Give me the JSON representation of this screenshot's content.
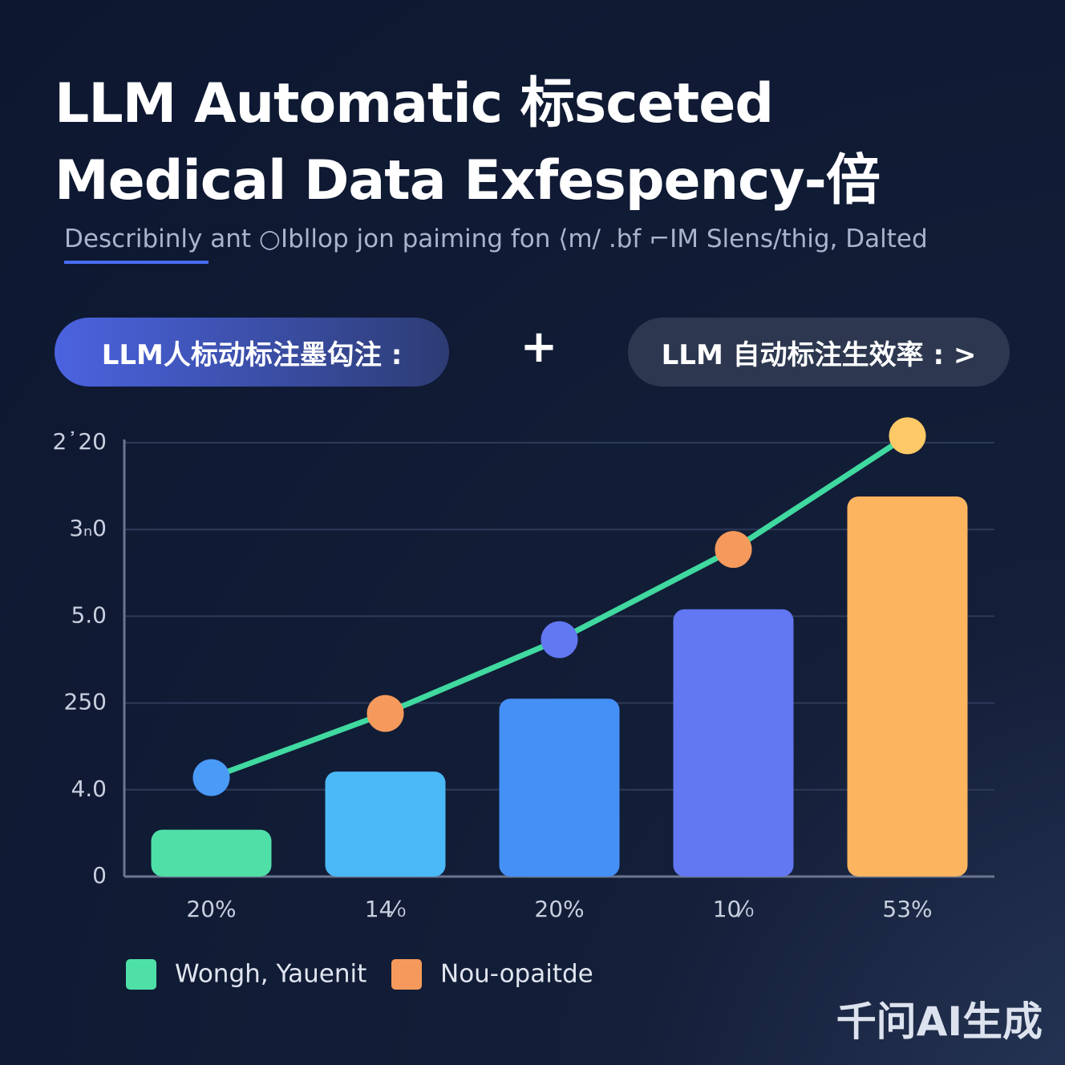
{
  "header": {
    "title": "LLM Automatic 标sceted Medical Data Exfespency-倍",
    "subtitle": "Describinly ant ○Ⅰbllop jon paiming fon ⟨m/ .bf ⌐IM Slens/thig, Dalted"
  },
  "pills": {
    "left": "LLM人标动标注墨匃注 :",
    "separator": "+",
    "right": "LLM 自动标注生效率 : >"
  },
  "watermark": "千问AI生成",
  "chart_data": {
    "type": "bar-line",
    "categories": [
      "20%",
      "14⁄₀",
      "20%",
      "10⁄₀",
      "53%"
    ],
    "series": [
      {
        "name": "Wongh, Yauenit",
        "type": "bar",
        "color": "#4fe0a8",
        "colors": [
          "#4fe0a8",
          "#4bb8f8",
          "#4490f7",
          "#6277f2",
          "#fdb45f"
        ],
        "values": [
          0.54,
          1.21,
          2.05,
          3.08,
          4.38
        ]
      },
      {
        "name": "Nou-opaitde",
        "type": "line",
        "color": "#f59a5c",
        "line_color": "#40d9a0",
        "point_colors": [
          "#4a9af7",
          "#f59a5c",
          "#6277f2",
          "#f59a5c",
          "#fdc866"
        ],
        "values": [
          1.14,
          1.88,
          2.73,
          3.77,
          5.08
        ]
      }
    ],
    "ylim": [
      0,
      5.2
    ],
    "yticks": [
      0,
      {
        "value": 1,
        "label": "4.0"
      },
      {
        "value": 2,
        "label": "250"
      },
      {
        "value": 3,
        "label": "5.0"
      },
      {
        "value": 4,
        "label": "3ₙ0"
      },
      {
        "value": 5,
        "label": "2᾽20"
      }
    ],
    "grid": true
  }
}
